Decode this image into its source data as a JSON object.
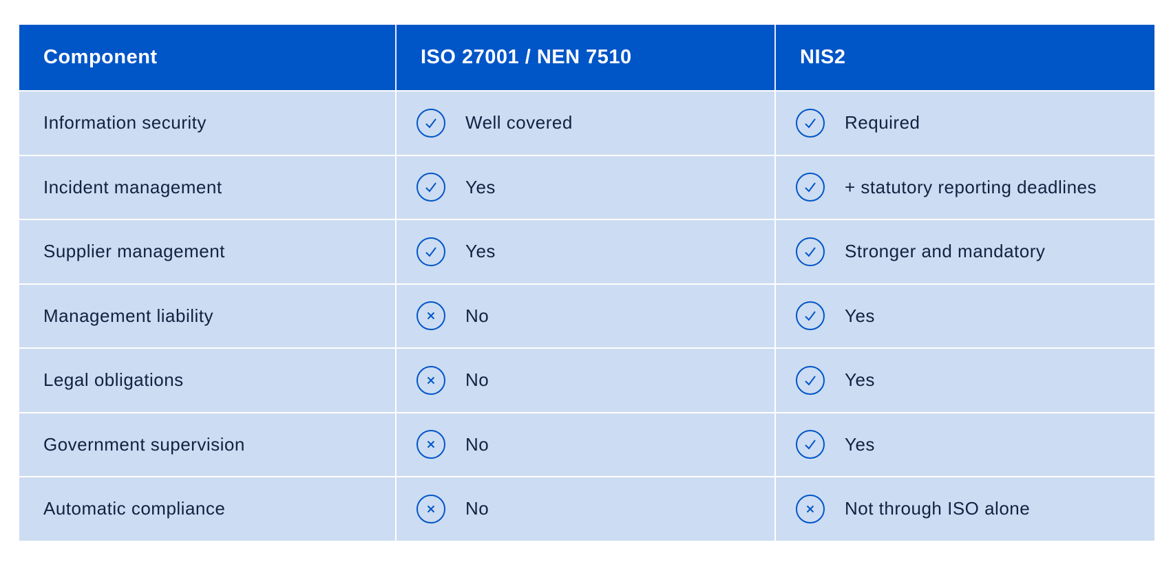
{
  "table": {
    "headers": [
      "Component",
      "ISO 27001 / NEN 7510",
      "NIS2"
    ],
    "rows": [
      {
        "component": "Information security",
        "iso": {
          "status": "check",
          "text": "Well covered"
        },
        "nis2": {
          "status": "check",
          "text": "Required"
        }
      },
      {
        "component": "Incident management",
        "iso": {
          "status": "check",
          "text": "Yes"
        },
        "nis2": {
          "status": "check",
          "text": "+ statutory reporting deadlines"
        }
      },
      {
        "component": "Supplier management",
        "iso": {
          "status": "check",
          "text": "Yes"
        },
        "nis2": {
          "status": "check",
          "text": "Stronger and mandatory"
        }
      },
      {
        "component": "Management liability",
        "iso": {
          "status": "cross",
          "text": "No"
        },
        "nis2": {
          "status": "check",
          "text": "Yes"
        }
      },
      {
        "component": "Legal obligations",
        "iso": {
          "status": "cross",
          "text": "No"
        },
        "nis2": {
          "status": "check",
          "text": "Yes"
        }
      },
      {
        "component": "Government supervision",
        "iso": {
          "status": "cross",
          "text": "No"
        },
        "nis2": {
          "status": "check",
          "text": "Yes"
        }
      },
      {
        "component": "Automatic compliance",
        "iso": {
          "status": "cross",
          "text": "No"
        },
        "nis2": {
          "status": "cross",
          "text": "Not through ISO alone"
        }
      }
    ]
  },
  "colors": {
    "header_bg": "#0055c7",
    "row_bg": "#ccdcf2",
    "icon": "#0055c7",
    "text": "#0f2340"
  }
}
